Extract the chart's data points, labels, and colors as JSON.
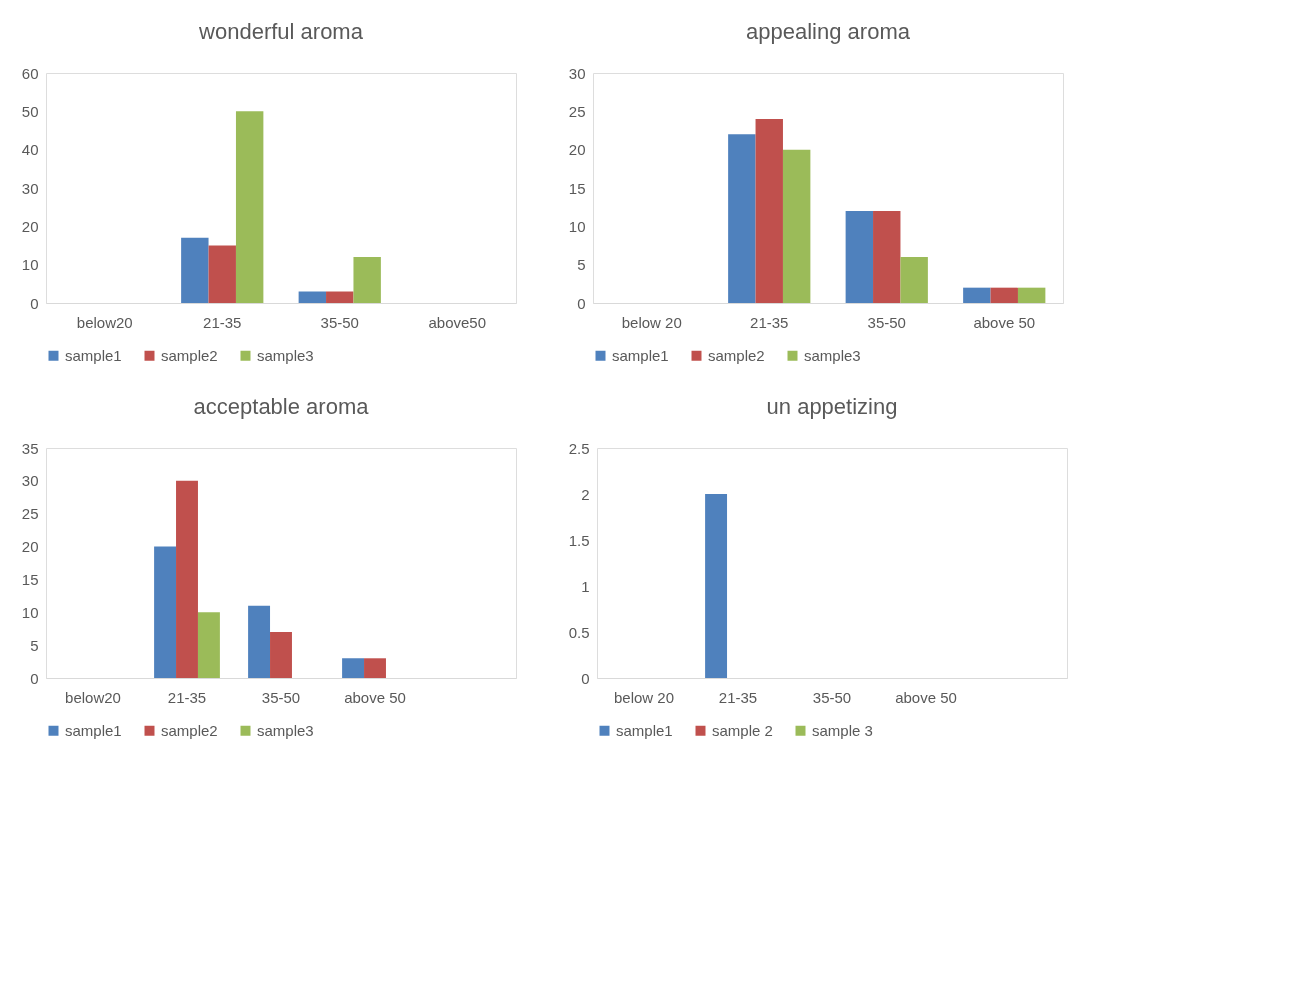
{
  "chart_data": [
    {
      "type": "bar",
      "title": "wonderful aroma",
      "categories": [
        "below20",
        "21-35",
        "35-50",
        "above50"
      ],
      "ylim": [
        0,
        60
      ],
      "yticks": [
        0,
        10,
        20,
        30,
        40,
        50,
        60
      ],
      "grid": false,
      "legend": "bottom",
      "series": [
        {
          "name": "sample1",
          "color": "#4f81bd",
          "values": [
            0,
            17,
            3,
            0
          ]
        },
        {
          "name": "sample2",
          "color": "#c0504d",
          "values": [
            0,
            15,
            3,
            0
          ]
        },
        {
          "name": "sample3",
          "color": "#9bbb59",
          "values": [
            0,
            50,
            12,
            0
          ]
        }
      ]
    },
    {
      "type": "bar",
      "title": "appealing aroma",
      "categories": [
        "below 20",
        "21-35",
        "35-50",
        "above 50"
      ],
      "ylim": [
        0,
        30
      ],
      "yticks": [
        0,
        5,
        10,
        15,
        20,
        25,
        30
      ],
      "grid": false,
      "legend": "bottom",
      "series": [
        {
          "name": "sample1",
          "color": "#4f81bd",
          "values": [
            0,
            22,
            12,
            2
          ]
        },
        {
          "name": "sample2",
          "color": "#c0504d",
          "values": [
            0,
            24,
            12,
            2
          ]
        },
        {
          "name": "sample3",
          "color": "#9bbb59",
          "values": [
            0,
            20,
            6,
            2
          ]
        }
      ]
    },
    {
      "type": "bar",
      "title": "acceptable aroma",
      "categories": [
        "below20",
        "21-35",
        "35-50",
        "above 50",
        null
      ],
      "ylim": [
        0,
        35
      ],
      "yticks": [
        0,
        5,
        10,
        15,
        20,
        25,
        30,
        35
      ],
      "grid": false,
      "legend": "bottom",
      "series": [
        {
          "name": "sample1",
          "color": "#4f81bd",
          "values": [
            0,
            20,
            11,
            3,
            null
          ]
        },
        {
          "name": "sample2",
          "color": "#c0504d",
          "values": [
            0,
            30,
            7,
            3,
            null
          ]
        },
        {
          "name": "sample3",
          "color": "#9bbb59",
          "values": [
            0,
            10,
            0,
            0,
            null
          ]
        }
      ]
    },
    {
      "type": "bar",
      "title": "un appetizing",
      "categories": [
        "below 20",
        "21-35",
        "35-50",
        "above 50",
        null
      ],
      "ylim": [
        0,
        2.5
      ],
      "yticks": [
        0,
        0.5,
        1,
        1.5,
        2,
        2.5
      ],
      "grid": false,
      "legend": "bottom",
      "series": [
        {
          "name": "sample1",
          "color": "#4f81bd",
          "values": [
            0,
            2,
            0,
            0,
            null
          ]
        },
        {
          "name": "sample 2",
          "color": "#c0504d",
          "values": [
            0,
            0,
            0,
            0,
            null
          ]
        },
        {
          "name": "sample 3",
          "color": "#9bbb59",
          "values": [
            0,
            0,
            0,
            0,
            null
          ]
        }
      ]
    }
  ]
}
